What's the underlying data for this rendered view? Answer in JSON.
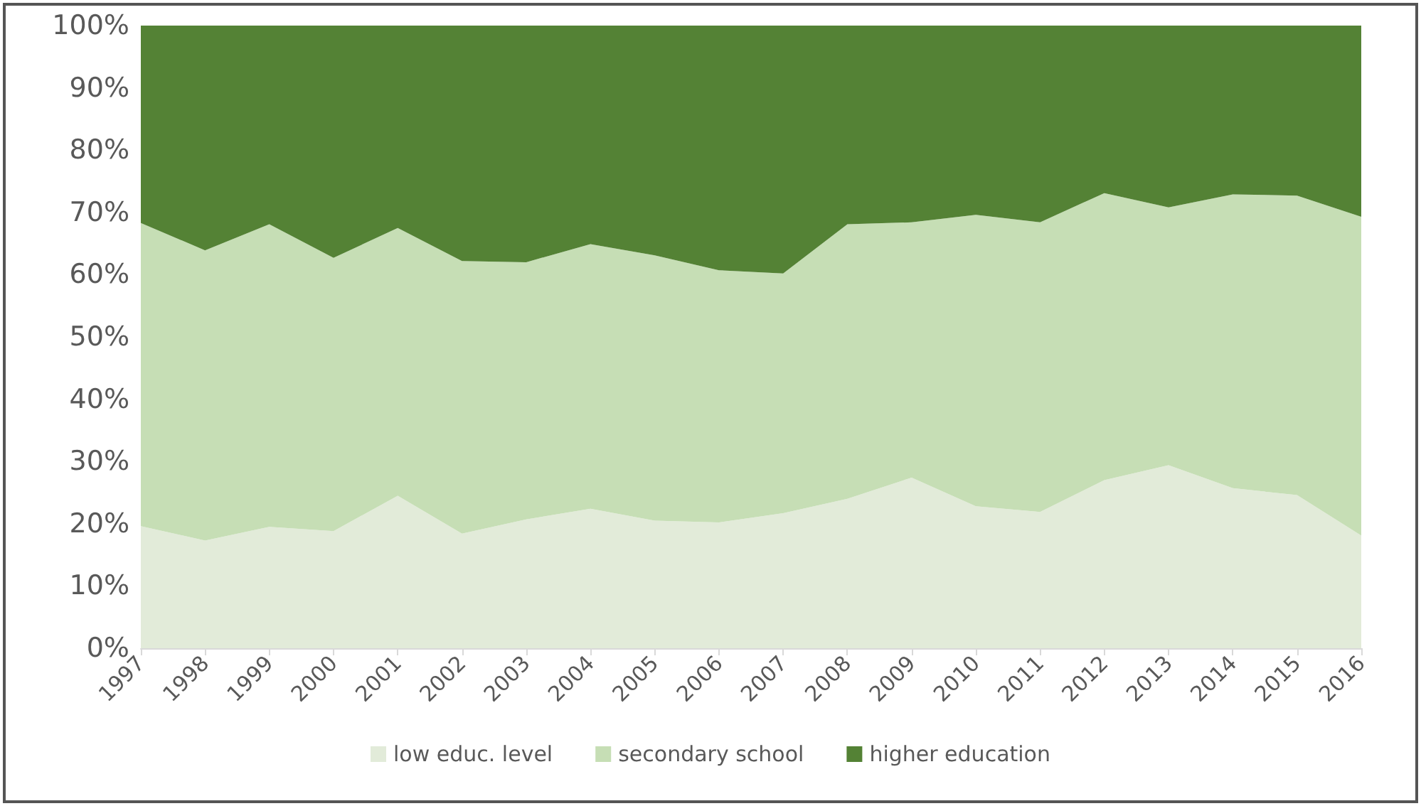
{
  "chart_data": {
    "type": "area",
    "stacked": true,
    "categories": [
      "1997",
      "1998",
      "1999",
      "2000",
      "2001",
      "2002",
      "2003",
      "2004",
      "2005",
      "2006",
      "2007",
      "2008",
      "2009",
      "2010",
      "2011",
      "2012",
      "2013",
      "2014",
      "2015",
      "2016"
    ],
    "series": [
      {
        "name": "low educ. level",
        "color": "#e2ebd9",
        "values": [
          19.6,
          17.3,
          19.5,
          18.8,
          24.5,
          18.4,
          20.7,
          22.4,
          20.5,
          20.2,
          21.7,
          24.0,
          27.4,
          22.8,
          21.9,
          27.0,
          29.4,
          25.7,
          24.6,
          18.1
        ]
      },
      {
        "name": "secondary school",
        "color": "#c6deb5",
        "values": [
          48.7,
          46.6,
          48.6,
          43.9,
          43.0,
          43.8,
          41.3,
          42.5,
          42.6,
          40.5,
          38.5,
          44.1,
          41.0,
          46.8,
          46.5,
          46.1,
          41.4,
          47.2,
          48.1,
          51.2
        ]
      },
      {
        "name": "higher education",
        "color": "#548235",
        "values": [
          31.7,
          36.1,
          31.9,
          37.3,
          32.5,
          37.8,
          38.0,
          35.1,
          36.9,
          39.3,
          39.8,
          31.9,
          31.6,
          30.4,
          31.6,
          26.9,
          29.2,
          27.1,
          27.3,
          30.7
        ]
      }
    ],
    "ylim": [
      0,
      100
    ],
    "yticks": [
      {
        "value": 0,
        "label": "0%"
      },
      {
        "value": 10,
        "label": "10%"
      },
      {
        "value": 20,
        "label": "20%"
      },
      {
        "value": 30,
        "label": "30%"
      },
      {
        "value": 40,
        "label": "40%"
      },
      {
        "value": 50,
        "label": "50%"
      },
      {
        "value": 60,
        "label": "60%"
      },
      {
        "value": 70,
        "label": "70%"
      },
      {
        "value": 80,
        "label": "80%"
      },
      {
        "value": 90,
        "label": "90%"
      },
      {
        "value": 100,
        "label": "100%"
      }
    ],
    "grid": false,
    "legend": "bottom"
  }
}
